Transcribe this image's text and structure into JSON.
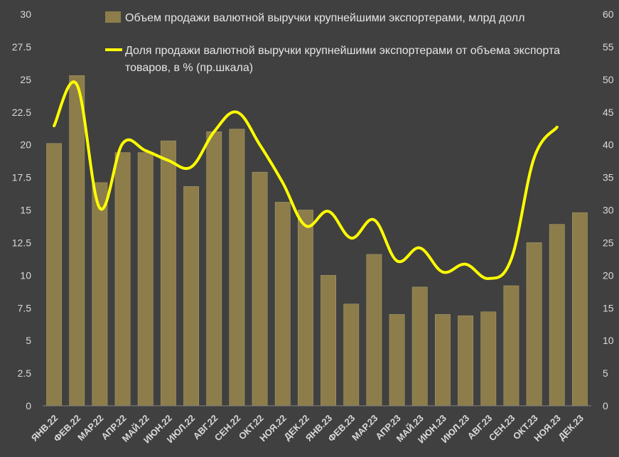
{
  "chart_data": {
    "type": "bar",
    "categories": [
      "ЯНВ.22",
      "ФЕВ.22",
      "МАР.22",
      "АПР.22",
      "МАЙ.22",
      "ИЮН.22",
      "ИЮЛ.22",
      "АВГ.22",
      "СЕН.22",
      "ОКТ.22",
      "НОЯ.22",
      "ДЕК.22",
      "ЯНВ.23",
      "ФЕВ.23",
      "МАР.23",
      "АПР.23",
      "МАЙ.23",
      "ИЮН.23",
      "ИЮЛ.23",
      "АВГ.23",
      "СЕН.23",
      "ОКТ.23",
      "НОЯ.23",
      "ДЕК.23"
    ],
    "series": [
      {
        "name": "Объем продажи  валютной выручки крупнейшими экспортерами, млрд долл",
        "type": "bar",
        "axis": "left",
        "color": "#8c7d4a",
        "values": [
          20.1,
          25.3,
          17.1,
          19.4,
          19.4,
          20.3,
          16.8,
          21.0,
          21.2,
          17.9,
          15.6,
          15.0,
          10.0,
          7.8,
          11.6,
          7.0,
          9.1,
          7.0,
          6.9,
          7.2,
          9.2,
          12.5,
          13.9,
          14.8
        ]
      },
      {
        "name": "Доля продажи валютной выручки крупнейшими экспортерами от объема экспорта товаров, в % (пр.шкала)",
        "type": "line",
        "axis": "right",
        "color": "#ffff00",
        "values": [
          42.9,
          49.2,
          30.3,
          40.2,
          39.1,
          37.6,
          36.6,
          42.0,
          45.0,
          40.0,
          34.2,
          27.6,
          29.8,
          25.7,
          28.5,
          22.2,
          24.2,
          20.5,
          21.7,
          19.5,
          22.5,
          38.0,
          42.7,
          null
        ]
      }
    ],
    "y_left": {
      "min": 0,
      "max": 30,
      "ticks": [
        "0",
        "2.5",
        "5",
        "7.5",
        "10",
        "12.5",
        "15",
        "17.5",
        "20",
        "22.5",
        "25",
        "27.5",
        "30"
      ]
    },
    "y_right": {
      "min": 0,
      "max": 60,
      "ticks": [
        "0",
        "5",
        "10",
        "15",
        "20",
        "25",
        "30",
        "35",
        "40",
        "45",
        "50",
        "55",
        "60"
      ]
    },
    "grid": false,
    "legend": {
      "position": "top",
      "bar_label": "Объем продажи  валютной выручки крупнейшими экспортерами, млрд долл",
      "line_label_1": "Доля продажи валютной выручки крупнейшими экспортерами от объема экспорта",
      "line_label_2": "товаров, в % (пр.шкала)"
    }
  }
}
